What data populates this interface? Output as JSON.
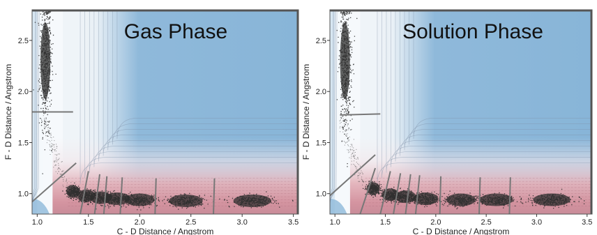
{
  "chart_data": [
    {
      "type": "heatmap",
      "title": "Gas Phase",
      "xlabel": "C - D Distance / Angstrom",
      "ylabel": "F - D Distance / Angstrom",
      "xlim": [
        0.95,
        3.55
      ],
      "ylim": [
        0.8,
        2.8
      ],
      "xticks": [
        "1.0",
        "1.5",
        "2.0",
        "2.5",
        "3.0",
        "3.5"
      ],
      "yticks": [
        "1.0",
        "1.5",
        "2.0",
        "2.5"
      ],
      "grid": false,
      "colors": {
        "low": "#8fb9da",
        "mid": "#f4f6f8",
        "high": "#d79aa2",
        "points": "#2d2d2d",
        "lines": "#777777"
      },
      "trajectory_clusters": [
        {
          "x": 1.08,
          "y": 2.3
        },
        {
          "x": 1.35,
          "y": 1.02
        },
        {
          "x": 1.48,
          "y": 0.98
        },
        {
          "x": 1.62,
          "y": 0.96
        },
        {
          "x": 1.78,
          "y": 0.95
        },
        {
          "x": 2.0,
          "y": 0.94
        },
        {
          "x": 2.45,
          "y": 0.93
        },
        {
          "x": 3.1,
          "y": 0.93
        }
      ],
      "dividing_lines": [
        {
          "x1": 0.95,
          "y1": 1.8,
          "x2": 1.35,
          "y2": 1.8
        },
        {
          "x1": 0.95,
          "y1": 0.92,
          "x2": 1.38,
          "y2": 1.3
        },
        {
          "x1": 1.42,
          "y1": 0.8,
          "x2": 1.5,
          "y2": 1.22
        },
        {
          "x1": 1.56,
          "y1": 0.8,
          "x2": 1.61,
          "y2": 1.19
        },
        {
          "x1": 1.65,
          "y1": 0.8,
          "x2": 1.68,
          "y2": 1.17
        },
        {
          "x1": 1.81,
          "y1": 0.8,
          "x2": 1.83,
          "y2": 1.16
        },
        {
          "x1": 2.15,
          "y1": 0.8,
          "x2": 2.16,
          "y2": 1.15
        },
        {
          "x1": 2.72,
          "y1": 0.8,
          "x2": 2.73,
          "y2": 1.15
        }
      ]
    },
    {
      "type": "heatmap",
      "title": "Solution Phase",
      "xlabel": "C - D Distance / Angstrom",
      "ylabel": "F - D Distance / Angstrom",
      "xlim": [
        0.95,
        3.55
      ],
      "ylim": [
        0.8,
        2.8
      ],
      "xticks": [
        "1.0",
        "1.5",
        "2.0",
        "2.5",
        "3.0",
        "3.5"
      ],
      "yticks": [
        "1.0",
        "1.5",
        "2.0",
        "2.5"
      ],
      "grid": false,
      "colors": {
        "low": "#8fb9da",
        "mid": "#f4f6f8",
        "high": "#d79aa2",
        "points": "#2d2d2d",
        "lines": "#777777"
      },
      "trajectory_clusters": [
        {
          "x": 1.1,
          "y": 2.3
        },
        {
          "x": 1.38,
          "y": 1.05
        },
        {
          "x": 1.55,
          "y": 0.99
        },
        {
          "x": 1.7,
          "y": 0.97
        },
        {
          "x": 1.9,
          "y": 0.95
        },
        {
          "x": 2.25,
          "y": 0.94
        },
        {
          "x": 2.6,
          "y": 0.94
        },
        {
          "x": 3.15,
          "y": 0.94
        }
      ],
      "dividing_lines": [
        {
          "x1": 1.05,
          "y1": 1.77,
          "x2": 1.45,
          "y2": 1.78
        },
        {
          "x1": 0.95,
          "y1": 0.98,
          "x2": 1.4,
          "y2": 1.38
        },
        {
          "x1": 1.25,
          "y1": 0.8,
          "x2": 1.4,
          "y2": 1.25
        },
        {
          "x1": 1.45,
          "y1": 0.8,
          "x2": 1.55,
          "y2": 1.22
        },
        {
          "x1": 1.58,
          "y1": 0.8,
          "x2": 1.65,
          "y2": 1.2
        },
        {
          "x1": 1.7,
          "y1": 0.8,
          "x2": 1.75,
          "y2": 1.19
        },
        {
          "x1": 1.8,
          "y1": 0.8,
          "x2": 1.84,
          "y2": 1.18
        },
        {
          "x1": 2.04,
          "y1": 0.8,
          "x2": 2.05,
          "y2": 1.17
        },
        {
          "x1": 2.43,
          "y1": 0.8,
          "x2": 2.44,
          "y2": 1.16
        },
        {
          "x1": 2.73,
          "y1": 0.8,
          "x2": 2.74,
          "y2": 1.16
        }
      ]
    }
  ]
}
